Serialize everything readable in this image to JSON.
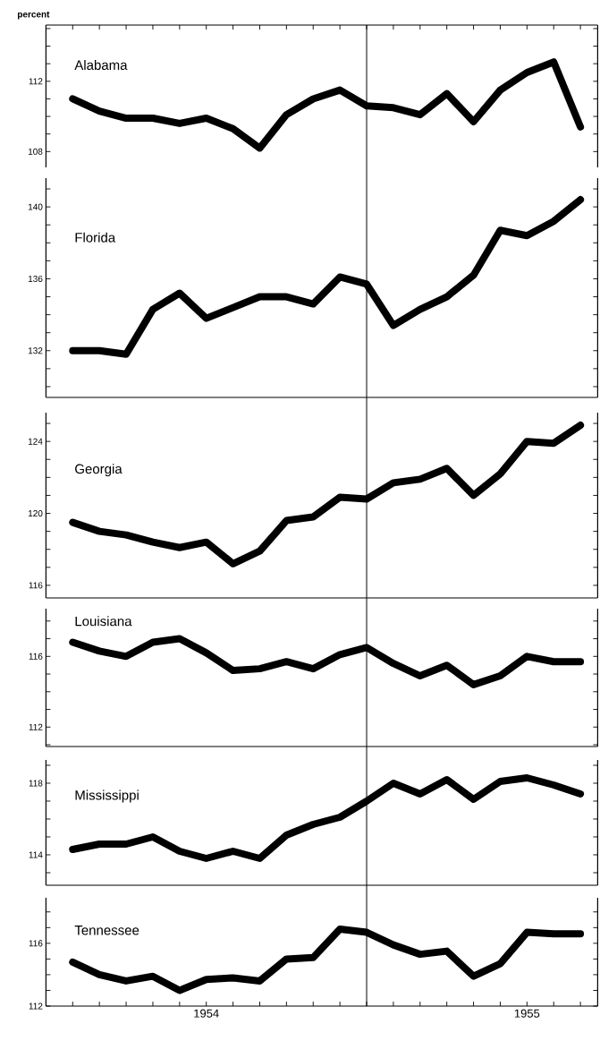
{
  "chart_data": [
    {
      "type": "line",
      "ylabel": "percent",
      "tick_labels": "y",
      "x": [
        "1953-08",
        "1953-09",
        "1953-10",
        "1953-11",
        "1953-12",
        "1954-01",
        "1954-02",
        "1954-03",
        "1954-04",
        "1954-05",
        "1954-06",
        "1954-07",
        "1954-08",
        "1954-09",
        "1954-10",
        "1954-11",
        "1954-12",
        "1955-01",
        "1955-02",
        "1955-03"
      ],
      "series": [
        {
          "name": "Alabama",
          "color": "#000000",
          "values": [
            111.0,
            110.3,
            109.9,
            109.9,
            109.6,
            109.9,
            109.3,
            108.2,
            110.1,
            111.0,
            111.5,
            110.6,
            110.5,
            110.1,
            111.3,
            109.7,
            111.5,
            112.5,
            113.1,
            109.4
          ]
        }
      ],
      "xlim": [
        "1953-07",
        "1955-03-21"
      ],
      "ylim": [
        107.1,
        115.2
      ],
      "yticks": [
        108,
        {
          "value": 109,
          "label": null
        },
        {
          "value": 110,
          "label": null
        },
        {
          "value": 111,
          "label": null
        },
        112,
        {
          "value": 113,
          "label": null
        },
        {
          "value": 114,
          "label": null
        },
        {
          "value": 115,
          "label": null
        }
      ],
      "xticks": [
        {
          "value": "1953-08",
          "label": null
        },
        {
          "value": "1953-09",
          "label": null
        },
        {
          "value": "1953-10",
          "label": null
        },
        {
          "value": "1953-11",
          "label": null
        },
        {
          "value": "1953-12",
          "label": null
        },
        {
          "value": "1954-01",
          "label": null
        },
        {
          "value": "1954-02",
          "label": null
        },
        {
          "value": "1954-03",
          "label": null
        },
        {
          "value": "1954-04",
          "label": null
        },
        {
          "value": "1954-05",
          "label": null
        },
        {
          "value": "1954-06",
          "label": null
        },
        {
          "value": "1954-07",
          "label": null
        },
        {
          "value": "1954-08",
          "label": null
        },
        {
          "value": "1954-09",
          "label": null
        },
        {
          "value": "1954-10",
          "label": null
        },
        {
          "value": "1954-11",
          "label": null
        },
        {
          "value": "1954-12",
          "label": null
        },
        {
          "value": "1955-01",
          "label": null
        },
        {
          "value": "1955-02",
          "label": null
        },
        {
          "value": "1955-03",
          "label": null
        }
      ]
    },
    {
      "type": "line",
      "tick_labels": "y",
      "x": [
        "1953-08",
        "1953-09",
        "1953-10",
        "1953-11",
        "1953-12",
        "1954-01",
        "1954-02",
        "1954-03",
        "1954-04",
        "1954-05",
        "1954-06",
        "1954-07",
        "1954-08",
        "1954-09",
        "1954-10",
        "1954-11",
        "1954-12",
        "1955-01",
        "1955-02",
        "1955-03"
      ],
      "series": [
        {
          "name": "Florida",
          "color": "#000000",
          "values": [
            132.0,
            132.0,
            131.8,
            134.3,
            135.2,
            133.8,
            134.4,
            135.0,
            135.0,
            134.6,
            136.1,
            135.7,
            133.4,
            134.3,
            135.0,
            136.2,
            138.7,
            138.4,
            139.2,
            140.4
          ]
        }
      ],
      "xlim": [
        "1953-07",
        "1955-03-21"
      ],
      "ylim": [
        129.4,
        141.6
      ],
      "yticks": [
        {
          "value": 130,
          "label": null
        },
        {
          "value": 131,
          "label": null
        },
        132,
        {
          "value": 133,
          "label": null
        },
        {
          "value": 134,
          "label": null
        },
        {
          "value": 135,
          "label": null
        },
        136,
        {
          "value": 137,
          "label": null
        },
        {
          "value": 138,
          "label": null
        },
        {
          "value": 139,
          "label": null
        },
        140,
        {
          "value": 141,
          "label": null
        }
      ]
    },
    {
      "type": "line",
      "tick_labels": "y",
      "x": [
        "1953-08",
        "1953-09",
        "1953-10",
        "1953-11",
        "1953-12",
        "1954-01",
        "1954-02",
        "1954-03",
        "1954-04",
        "1954-05",
        "1954-06",
        "1954-07",
        "1954-08",
        "1954-09",
        "1954-10",
        "1954-11",
        "1954-12",
        "1955-01",
        "1955-02",
        "1955-03"
      ],
      "series": [
        {
          "name": "Georgia",
          "color": "#000000",
          "values": [
            119.5,
            119.0,
            118.8,
            118.4,
            118.1,
            118.4,
            117.2,
            117.9,
            119.6,
            119.8,
            120.9,
            120.8,
            121.7,
            121.9,
            122.5,
            121.0,
            122.2,
            124.0,
            123.9,
            124.9
          ]
        }
      ],
      "xlim": [
        "1953-07",
        "1955-03-21"
      ],
      "ylim": [
        115.3,
        125.6
      ],
      "yticks": [
        116,
        {
          "value": 117,
          "label": null
        },
        {
          "value": 118,
          "label": null
        },
        {
          "value": 119,
          "label": null
        },
        120,
        {
          "value": 121,
          "label": null
        },
        {
          "value": 122,
          "label": null
        },
        {
          "value": 123,
          "label": null
        },
        124,
        {
          "value": 125,
          "label": null
        }
      ]
    },
    {
      "type": "line",
      "tick_labels": "y",
      "x": [
        "1953-08",
        "1953-09",
        "1953-10",
        "1953-11",
        "1953-12",
        "1954-01",
        "1954-02",
        "1954-03",
        "1954-04",
        "1954-05",
        "1954-06",
        "1954-07",
        "1954-08",
        "1954-09",
        "1954-10",
        "1954-11",
        "1954-12",
        "1955-01",
        "1955-02",
        "1955-03"
      ],
      "series": [
        {
          "name": "Louisiana",
          "color": "#000000",
          "values": [
            116.8,
            116.3,
            116.0,
            116.8,
            117.0,
            116.2,
            115.2,
            115.3,
            115.7,
            115.3,
            116.1,
            116.5,
            115.6,
            114.9,
            115.5,
            114.4,
            114.9,
            116.0,
            115.7,
            115.7
          ]
        }
      ],
      "xlim": [
        "1953-07",
        "1955-03-21"
      ],
      "ylim": [
        110.9,
        118.7
      ],
      "yticks": [
        {
          "value": 111,
          "label": null
        },
        112,
        {
          "value": 113,
          "label": null
        },
        {
          "value": 114,
          "label": null
        },
        {
          "value": 115,
          "label": null
        },
        116,
        {
          "value": 117,
          "label": null
        },
        {
          "value": 118,
          "label": null
        }
      ]
    },
    {
      "type": "line",
      "tick_labels": "y",
      "x": [
        "1953-08",
        "1953-09",
        "1953-10",
        "1953-11",
        "1953-12",
        "1954-01",
        "1954-02",
        "1954-03",
        "1954-04",
        "1954-05",
        "1954-06",
        "1954-07",
        "1954-08",
        "1954-09",
        "1954-10",
        "1954-11",
        "1954-12",
        "1955-01",
        "1955-02",
        "1955-03"
      ],
      "series": [
        {
          "name": "Mississippi",
          "color": "#000000",
          "values": [
            114.3,
            114.6,
            114.6,
            115.0,
            114.2,
            113.8,
            114.2,
            113.8,
            115.1,
            115.7,
            116.1,
            117.0,
            118.0,
            117.4,
            118.2,
            117.1,
            118.1,
            118.3,
            117.9,
            117.4
          ]
        }
      ],
      "xlim": [
        "1953-07",
        "1955-03-21"
      ],
      "ylim": [
        112.3,
        119.3
      ],
      "yticks": [
        {
          "value": 113,
          "label": null
        },
        114,
        {
          "value": 115,
          "label": null
        },
        {
          "value": 116,
          "label": null
        },
        {
          "value": 117,
          "label": null
        },
        118,
        {
          "value": 119,
          "label": null
        }
      ]
    },
    {
      "type": "line",
      "x": [
        "1953-08",
        "1953-09",
        "1953-10",
        "1953-11",
        "1953-12",
        "1954-01",
        "1954-02",
        "1954-03",
        "1954-04",
        "1954-05",
        "1954-06",
        "1954-07",
        "1954-08",
        "1954-09",
        "1954-10",
        "1954-11",
        "1954-12",
        "1955-01",
        "1955-02",
        "1955-03"
      ],
      "series": [
        {
          "name": "Tennessee",
          "color": "#000000",
          "values": [
            114.8,
            114.0,
            113.6,
            113.9,
            113.0,
            113.7,
            113.8,
            113.6,
            115.0,
            115.1,
            116.9,
            116.7,
            115.9,
            115.3,
            115.5,
            113.9,
            114.7,
            116.7,
            116.6,
            116.6
          ]
        }
      ],
      "xlim": [
        "1953-07",
        "1955-03-21"
      ],
      "ylim": [
        112,
        118.9
      ],
      "yticks": [
        112,
        {
          "value": 113,
          "label": null
        },
        {
          "value": 114,
          "label": null
        },
        {
          "value": 115,
          "label": null
        },
        116,
        {
          "value": 117,
          "label": null
        },
        {
          "value": 118,
          "label": null
        }
      ],
      "xticks": [
        {
          "value": "1953-08",
          "label": null
        },
        {
          "value": "1953-09",
          "label": null
        },
        {
          "value": "1953-10",
          "label": null
        },
        {
          "value": "1953-11",
          "label": null
        },
        {
          "value": "1953-12",
          "label": null
        },
        {
          "value": "1954-01",
          "label": "1954"
        },
        {
          "value": "1954-02",
          "label": null
        },
        {
          "value": "1954-03",
          "label": null
        },
        {
          "value": "1954-04",
          "label": null
        },
        {
          "value": "1954-05",
          "label": null
        },
        {
          "value": "1954-06",
          "label": null
        },
        {
          "value": "1954-07",
          "label": null
        },
        {
          "value": "1954-08",
          "label": null
        },
        {
          "value": "1954-09",
          "label": null
        },
        {
          "value": "1954-10",
          "label": null
        },
        {
          "value": "1954-11",
          "label": null
        },
        {
          "value": "1954-12",
          "label": null
        },
        {
          "value": "1955-01",
          "label": "1955"
        },
        {
          "value": "1955-02",
          "label": null
        },
        {
          "value": "1955-03",
          "label": null
        }
      ],
      "ref_lines": [
        {
          "axis": "x",
          "value": "1954-07",
          "color": "#000000"
        }
      ]
    }
  ]
}
